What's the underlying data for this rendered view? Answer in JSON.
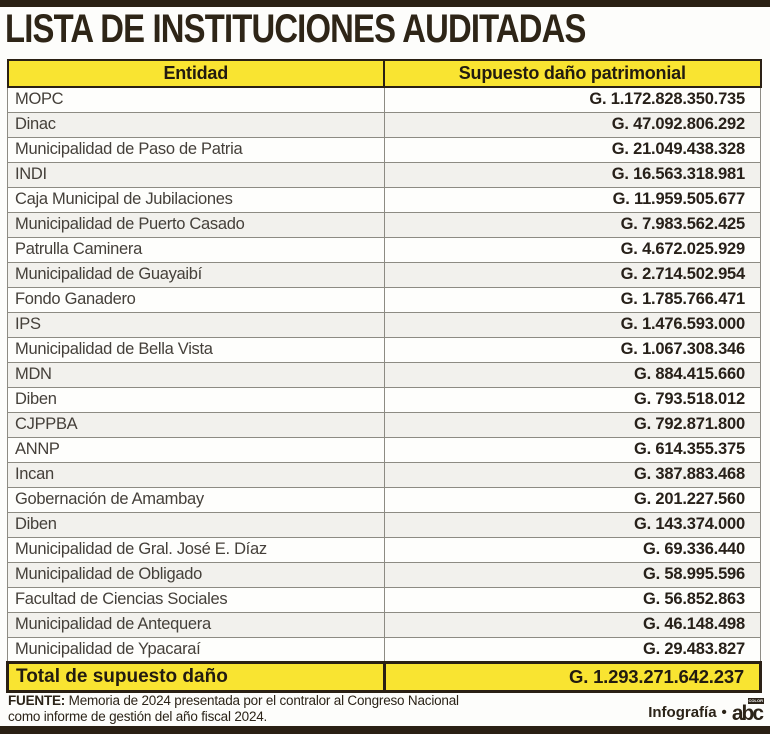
{
  "page": {
    "title": "LISTA DE INSTITUCIONES AUDITADAS",
    "source_label": "FUENTE:",
    "source_line1": " Memoria de 2024 presentada por el contralor al Congreso Nacional",
    "source_line2": "como informe de gestión del año fiscal 2024.",
    "credit_label": "Infografía",
    "credit_bullet": "•",
    "logo_text": "abc",
    "logo_tag": "COLOR"
  },
  "colors": {
    "header_yellow": "#F9E431",
    "dark_brown": "#2A2014",
    "row_alt_gray": "#F2F1ED",
    "border_gray": "#8D8B83"
  },
  "table": {
    "headers": [
      "Entidad",
      "Supuesto daño patrimonial"
    ],
    "rows": [
      {
        "entidad": "MOPC",
        "monto": "G. 1.172.828.350.735"
      },
      {
        "entidad": "Dinac",
        "monto": "G. 47.092.806.292"
      },
      {
        "entidad": "Municipalidad de Paso de Patria",
        "monto": "G. 21.049.438.328"
      },
      {
        "entidad": "INDI",
        "monto": "G. 16.563.318.981"
      },
      {
        "entidad": "Caja Municipal de Jubilaciones",
        "monto": "G. 11.959.505.677"
      },
      {
        "entidad": "Municipalidad de Puerto Casado",
        "monto": "G. 7.983.562.425"
      },
      {
        "entidad": "Patrulla Caminera",
        "monto": "G. 4.672.025.929"
      },
      {
        "entidad": "Municipalidad de Guayaibí",
        "monto": "G. 2.714.502.954"
      },
      {
        "entidad": "Fondo Ganadero",
        "monto": "G. 1.785.766.471"
      },
      {
        "entidad": "IPS",
        "monto": "G. 1.476.593.000"
      },
      {
        "entidad": "Municipalidad de Bella Vista",
        "monto": "G. 1.067.308.346"
      },
      {
        "entidad": "MDN",
        "monto": "G. 884.415.660"
      },
      {
        "entidad": "Diben",
        "monto": "G. 793.518.012"
      },
      {
        "entidad": "CJPPBA",
        "monto": "G. 792.871.800"
      },
      {
        "entidad": "ANNP",
        "monto": "G. 614.355.375"
      },
      {
        "entidad": "Incan",
        "monto": "G. 387.883.468"
      },
      {
        "entidad": "Gobernación de Amambay",
        "monto": "G. 201.227.560"
      },
      {
        "entidad": "Diben",
        "monto": "G. 143.374.000"
      },
      {
        "entidad": "Municipalidad de Gral. José E. Díaz",
        "monto": "G. 69.336.440"
      },
      {
        "entidad": "Municipalidad de Obligado",
        "monto": "G. 58.995.596"
      },
      {
        "entidad": "Facultad de Ciencias Sociales",
        "monto": "G. 56.852.863"
      },
      {
        "entidad": "Municipalidad de Antequera",
        "monto": "G. 46.148.498"
      },
      {
        "entidad": "Municipalidad de Ypacaraí",
        "monto": "G. 29.483.827"
      }
    ],
    "total": {
      "label": "Total de supuesto daño",
      "monto": "G. 1.293.271.642.237"
    }
  },
  "chart_data": {
    "type": "table",
    "title": "LISTA DE INSTITUCIONES AUDITADAS",
    "columns": [
      "Entidad",
      "Supuesto daño patrimonial"
    ],
    "unit_prefix": "G.",
    "rows": [
      [
        "MOPC",
        "G. 1.172.828.350.735"
      ],
      [
        "Dinac",
        "G. 47.092.806.292"
      ],
      [
        "Municipalidad de Paso de Patria",
        "G. 21.049.438.328"
      ],
      [
        "INDI",
        "G. 16.563.318.981"
      ],
      [
        "Caja Municipal de Jubilaciones",
        "G. 11.959.505.677"
      ],
      [
        "Municipalidad de Puerto Casado",
        "G. 7.983.562.425"
      ],
      [
        "Patrulla Caminera",
        "G. 4.672.025.929"
      ],
      [
        "Municipalidad de Guayaibí",
        "G. 2.714.502.954"
      ],
      [
        "Fondo Ganadero",
        "G. 1.785.766.471"
      ],
      [
        "IPS",
        "G. 1.476.593.000"
      ],
      [
        "Municipalidad de Bella Vista",
        "G. 1.067.308.346"
      ],
      [
        "MDN",
        "G. 884.415.660"
      ],
      [
        "Diben",
        "G. 793.518.012"
      ],
      [
        "CJPPBA",
        "G. 792.871.800"
      ],
      [
        "ANNP",
        "G. 614.355.375"
      ],
      [
        "Incan",
        "G. 387.883.468"
      ],
      [
        "Gobernación de Amambay",
        "G. 201.227.560"
      ],
      [
        "Diben",
        "G. 143.374.000"
      ],
      [
        "Municipalidad de Gral. José E. Díaz",
        "G. 69.336.440"
      ],
      [
        "Municipalidad de Obligado",
        "G. 58.995.596"
      ],
      [
        "Facultad de Ciencias Sociales",
        "G. 56.852.863"
      ],
      [
        "Municipalidad de Antequera",
        "G. 46.148.498"
      ],
      [
        "Municipalidad de Ypacaraí",
        "G. 29.483.827"
      ]
    ],
    "total_row": [
      "Total de supuesto daño",
      "G. 1.293.271.642.237"
    ],
    "source": "FUENTE: Memoria de 2024 presentada por el contralor al Congreso Nacional como informe de gestión del año fiscal 2024.",
    "credit": "Infografía • abc"
  }
}
